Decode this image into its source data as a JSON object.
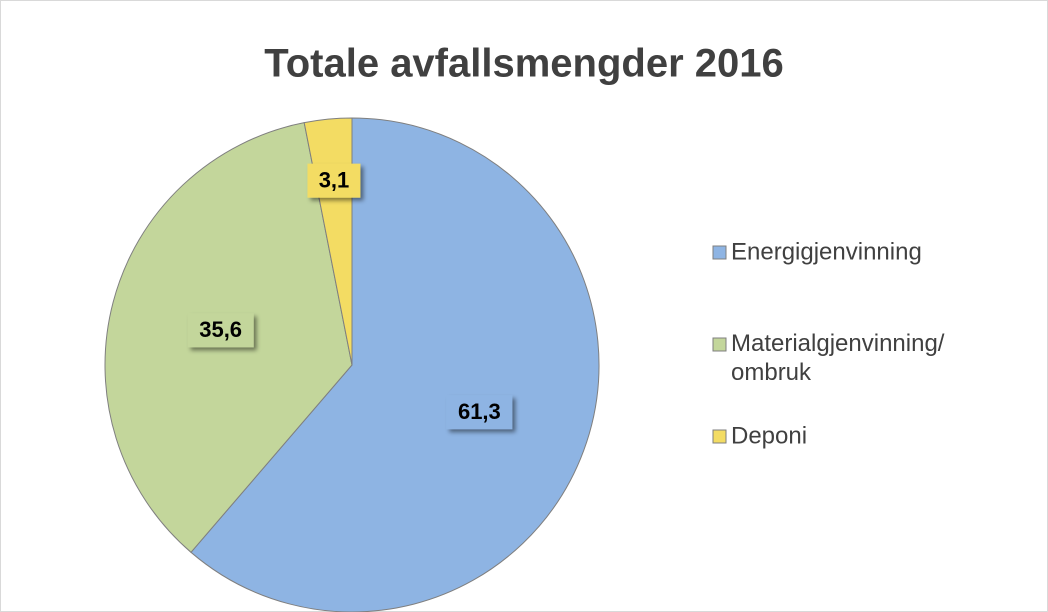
{
  "chart_data": {
    "type": "pie",
    "title": "Totale avfallsmengder 2016",
    "categories": [
      "Energigjenvinning",
      "Materialgjenvinning/ ombruk",
      "Deponi"
    ],
    "values": [
      61.3,
      35.6,
      3.1
    ],
    "value_labels": [
      "61,3",
      "35,6",
      "3,1"
    ],
    "colors": [
      "#8eb4e3",
      "#c3d69b",
      "#f3dc63"
    ],
    "legend": "right"
  }
}
